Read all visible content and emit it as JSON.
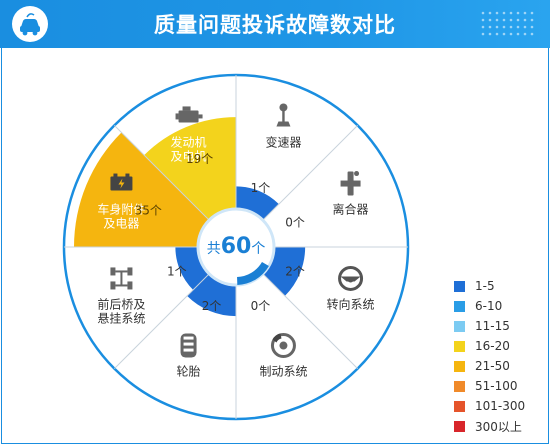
{
  "header": {
    "title": "质量问题投诉故障数对比"
  },
  "center": {
    "prefix": "共",
    "total": "60",
    "suffix": "个"
  },
  "legend": [
    {
      "label": "1-5",
      "color": "#1f6fd6"
    },
    {
      "label": "6-10",
      "color": "#2a9de6"
    },
    {
      "label": "11-15",
      "color": "#7ccbf2"
    },
    {
      "label": "16-20",
      "color": "#f3d31c"
    },
    {
      "label": "21-50",
      "color": "#f5b50f"
    },
    {
      "label": "51-100",
      "color": "#f08a2a"
    },
    {
      "label": "101-300",
      "color": "#e5542b"
    },
    {
      "label": "300以上",
      "color": "#d8262b"
    }
  ],
  "chart_data": {
    "type": "radial",
    "title": "质量问题投诉故障数对比",
    "total": 60,
    "categories": [
      "发动机\n及电机",
      "变速器",
      "离合器",
      "转向系统",
      "制动系统",
      "轮胎",
      "前后桥及\n悬挂系统",
      "车身附件\n及电器"
    ],
    "values": [
      19,
      1,
      0,
      2,
      0,
      2,
      1,
      35
    ],
    "value_labels": [
      "19个",
      "1个",
      "0个",
      "2个",
      "0个",
      "2个",
      "1个",
      "35个"
    ],
    "icons": [
      "engine-icon",
      "gear-shift-icon",
      "clutch-icon",
      "steering-wheel-icon",
      "brake-disc-icon",
      "tire-icon",
      "axle-icon",
      "battery-icon"
    ],
    "bins": [
      "1-5",
      "6-10",
      "11-15",
      "16-20",
      "21-50",
      "51-100",
      "101-300",
      "300以上"
    ]
  }
}
